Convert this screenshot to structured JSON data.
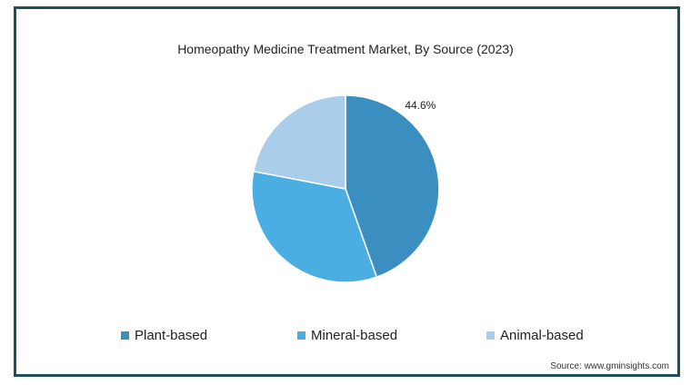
{
  "chart_data": {
    "type": "pie",
    "title": "Homeopathy Medicine Treatment Market, By Source (2023)",
    "categories": [
      "Plant-based",
      "Mineral-based",
      "Animal-based"
    ],
    "values": [
      44.6,
      33.4,
      22.0
    ],
    "colors": [
      "#3b8fc0",
      "#4aaee3",
      "#a9cdea"
    ],
    "data_labels": [
      "44.6%",
      "",
      ""
    ],
    "legend_position": "bottom",
    "source": "Source: www.gminsights.com"
  }
}
